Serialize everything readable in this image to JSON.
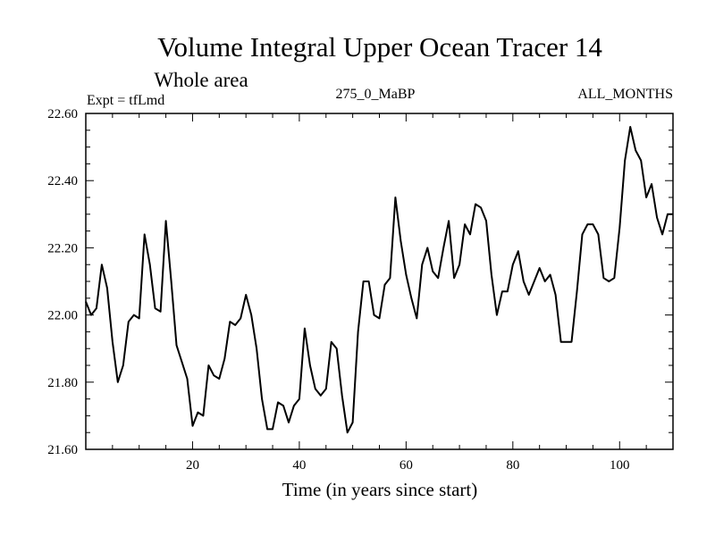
{
  "chart_data": {
    "type": "line",
    "title": "Volume Integral Upper Ocean Tracer 14",
    "subtitle": "Whole area",
    "annotations": {
      "left": "Expt = tfLmd",
      "center": "275_0_MaBP",
      "right": "ALL_MONTHS"
    },
    "xlabel": "Time (in years since start)",
    "ylabel": "",
    "xlim": [
      0,
      110
    ],
    "ylim": [
      21.6,
      22.6
    ],
    "xticks": [
      20,
      40,
      60,
      80,
      100
    ],
    "xtick_labels": [
      "20",
      "40",
      "60",
      "80",
      "100"
    ],
    "yticks": [
      21.6,
      21.8,
      22.0,
      22.2,
      22.4,
      22.6
    ],
    "ytick_labels": [
      "21.60",
      "21.80",
      "22.00",
      "22.20",
      "22.40",
      "22.60"
    ],
    "grid": false,
    "series": [
      {
        "name": "Tracer 14",
        "x": [
          0,
          1,
          2,
          3,
          4,
          5,
          6,
          7,
          8,
          9,
          10,
          11,
          12,
          13,
          14,
          15,
          16,
          17,
          18,
          19,
          20,
          21,
          22,
          23,
          24,
          25,
          26,
          27,
          28,
          29,
          30,
          31,
          32,
          33,
          34,
          35,
          36,
          37,
          38,
          39,
          40,
          41,
          42,
          43,
          44,
          45,
          46,
          47,
          48,
          49,
          50,
          51,
          52,
          53,
          54,
          55,
          56,
          57,
          58,
          59,
          60,
          61,
          62,
          63,
          64,
          65,
          66,
          67,
          68,
          69,
          70,
          71,
          72,
          73,
          74,
          75,
          76,
          77,
          78,
          79,
          80,
          81,
          82,
          83,
          84,
          85,
          86,
          87,
          88,
          89,
          90,
          91,
          92,
          93,
          94,
          95,
          96,
          97,
          98,
          99,
          100,
          101,
          102,
          103,
          104,
          105,
          106,
          107,
          108,
          109,
          110
        ],
        "values": [
          22.04,
          22.0,
          22.02,
          22.15,
          22.08,
          21.92,
          21.8,
          21.85,
          21.98,
          22.0,
          21.99,
          22.24,
          22.15,
          22.02,
          22.01,
          22.28,
          22.1,
          21.91,
          21.86,
          21.81,
          21.67,
          21.71,
          21.7,
          21.85,
          21.82,
          21.81,
          21.87,
          21.98,
          21.97,
          21.99,
          22.06,
          22.0,
          21.9,
          21.75,
          21.66,
          21.66,
          21.74,
          21.73,
          21.68,
          21.73,
          21.75,
          21.96,
          21.85,
          21.78,
          21.76,
          21.78,
          21.92,
          21.9,
          21.76,
          21.65,
          21.68,
          21.95,
          22.1,
          22.1,
          22.0,
          21.99,
          22.09,
          22.11,
          22.35,
          22.22,
          22.12,
          22.05,
          21.99,
          22.15,
          22.2,
          22.13,
          22.11,
          22.2,
          22.28,
          22.11,
          22.15,
          22.27,
          22.24,
          22.33,
          22.32,
          22.28,
          22.12,
          22.0,
          22.07,
          22.07,
          22.15,
          22.19,
          22.1,
          22.06,
          22.1,
          22.14,
          22.1,
          22.12,
          22.06,
          21.92,
          21.92,
          21.92,
          22.07,
          22.24,
          22.27,
          22.27,
          22.24,
          22.11,
          22.1,
          22.11,
          22.26,
          22.46,
          22.56,
          22.49,
          22.46,
          22.35,
          22.39,
          22.29,
          22.24,
          22.3,
          22.3
        ]
      }
    ]
  }
}
